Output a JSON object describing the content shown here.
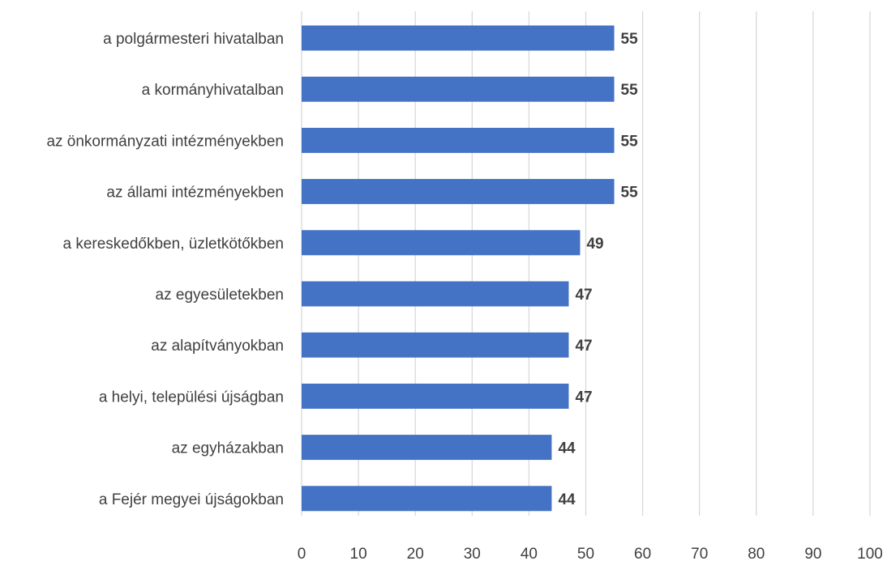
{
  "chart_data": {
    "type": "bar",
    "orientation": "horizontal",
    "title": "",
    "xlabel": "",
    "ylabel": "",
    "categories": [
      "a polgármesteri hivatalban",
      "a kormányhivatalban",
      "az önkormányzati intézményekben",
      "az állami intézményekben",
      "a kereskedőkben, üzletkötőkben",
      "az egyesületekben",
      "az alapítványokban",
      "a helyi, települési újságban",
      "az egyházakban",
      "a Fejér megyei újságokban"
    ],
    "values": [
      55,
      55,
      55,
      55,
      49,
      47,
      47,
      47,
      44,
      44
    ],
    "xlim": [
      0,
      100
    ],
    "xticks": [
      0,
      10,
      20,
      30,
      40,
      50,
      60,
      70,
      80,
      90,
      100
    ],
    "grid": "vertical",
    "legend": "none",
    "bar_color": "#4472c4",
    "data_labels": true
  }
}
